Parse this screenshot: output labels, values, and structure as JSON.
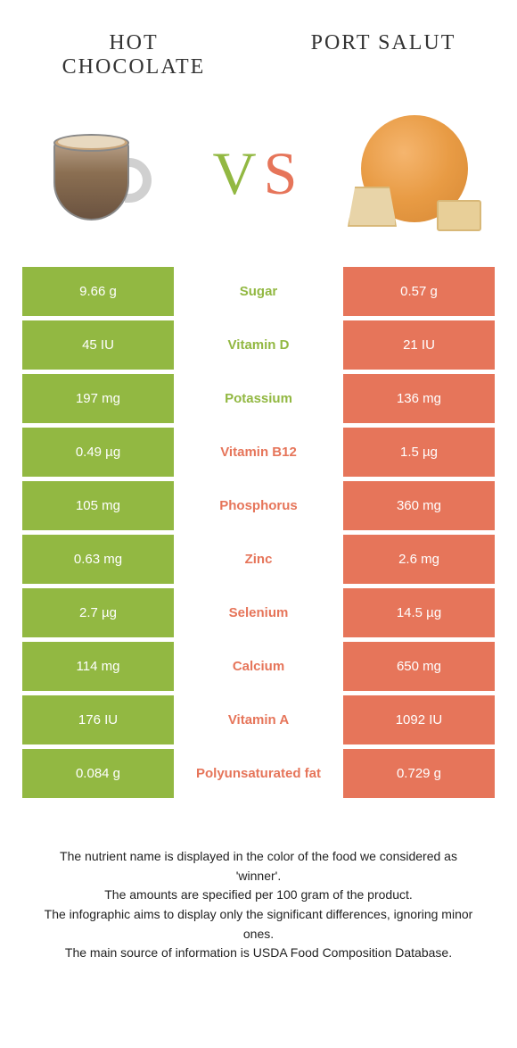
{
  "left_food": "HOT CHOCOLATE",
  "right_food": "PORT SALUT",
  "vs_label": {
    "v": "V",
    "s": "S"
  },
  "colors": {
    "green": "#92b842",
    "orange": "#e6755a",
    "text_dark": "#333333"
  },
  "rows": [
    {
      "left": "9.66 g",
      "name": "Sugar",
      "right": "0.57 g",
      "winner": "green"
    },
    {
      "left": "45 IU",
      "name": "Vitamin D",
      "right": "21 IU",
      "winner": "green"
    },
    {
      "left": "197 mg",
      "name": "Potassium",
      "right": "136 mg",
      "winner": "green"
    },
    {
      "left": "0.49 µg",
      "name": "Vitamin B12",
      "right": "1.5 µg",
      "winner": "orange"
    },
    {
      "left": "105 mg",
      "name": "Phosphorus",
      "right": "360 mg",
      "winner": "orange"
    },
    {
      "left": "0.63 mg",
      "name": "Zinc",
      "right": "2.6 mg",
      "winner": "orange"
    },
    {
      "left": "2.7 µg",
      "name": "Selenium",
      "right": "14.5 µg",
      "winner": "orange"
    },
    {
      "left": "114 mg",
      "name": "Calcium",
      "right": "650 mg",
      "winner": "orange"
    },
    {
      "left": "176 IU",
      "name": "Vitamin A",
      "right": "1092 IU",
      "winner": "orange"
    },
    {
      "left": "0.084 g",
      "name": "Polyunsaturated fat",
      "right": "0.729 g",
      "winner": "orange"
    }
  ],
  "footer_lines": [
    "The nutrient name is displayed in the color of the food we considered as 'winner'.",
    "The amounts are specified per 100 gram of the product.",
    "The infographic aims to display only the significant differences, ignoring minor ones.",
    "The main source of information is USDA Food Composition Database."
  ]
}
